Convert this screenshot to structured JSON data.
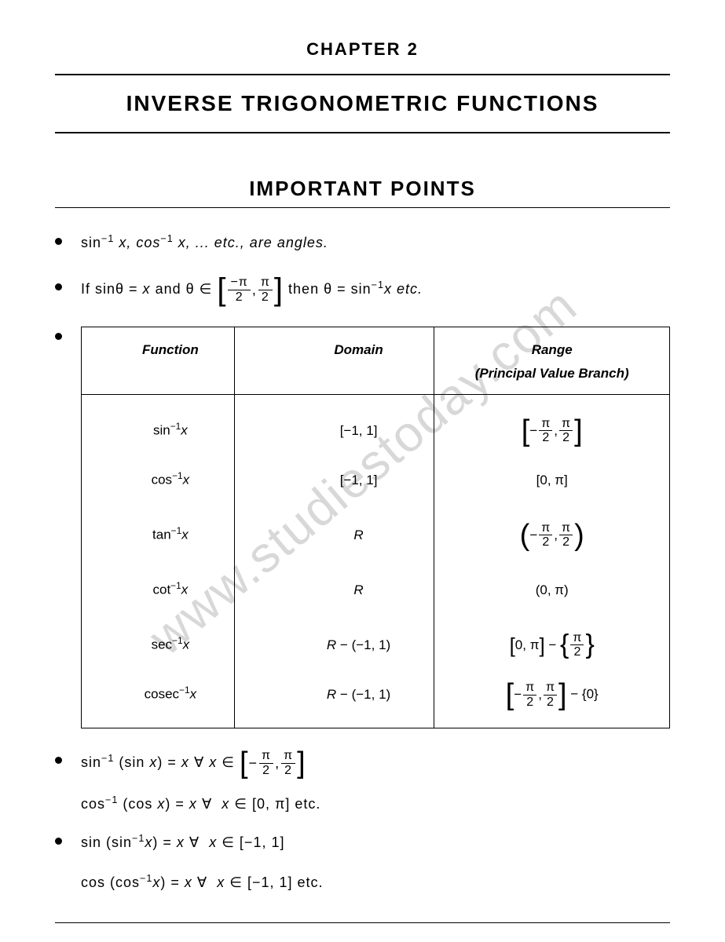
{
  "watermark": "www.studiestoday.com",
  "chapter_label": "CHAPTER 2",
  "chapter_title": "INVERSE TRIGONOMETRIC FUNCTIONS",
  "section_title": "IMPORTANT POINTS",
  "colors": {
    "text": "#000000",
    "background": "#ffffff",
    "watermark": "#d8d8d8",
    "rule": "#000000"
  },
  "typography": {
    "body_fontsize": 18,
    "chapter_label_fontsize": 22,
    "chapter_title_fontsize": 28,
    "section_title_fontsize": 26,
    "table_fontsize": 17
  },
  "bullets": {
    "b1_pre": "sin",
    "b1_sup": "−1",
    "b1_mid": " x, cos",
    "b1_post": " x, ... etc., are angles.",
    "b2_pre": "If sinθ = ",
    "b2_x": "x",
    "b2_and": " and ",
    "b2_theta_in": "θ ∈",
    "b2_frac1_num": "−π",
    "b2_frac1_den": "2",
    "b2_comma": ", ",
    "b2_frac2_num": "π",
    "b2_frac2_den": "2",
    "b2_then": " then θ = sin",
    "b2_post": "x etc.",
    "b4_pre": "sin",
    "b4_mid1": " (sin ",
    "b4_x": "x",
    "b4_eq": ") = ",
    "b4_forall": " ∀ ",
    "b4_in": " ∈",
    "b4_sub_pre": "cos",
    "b4_sub_mid": " (cos ",
    "b4_sub_range": " ∈ [0, π] etc.",
    "b5_pre": "sin (sin",
    "b5_post": " ∈ [−1, 1]",
    "b5_sub_pre": "cos (cos",
    "b5_sub_post": " ∈ [−1, 1] etc."
  },
  "table": {
    "headers": {
      "function": "Function",
      "domain": "Domain",
      "range_l1": "Range",
      "range_l2": "(Principal Value Branch)"
    },
    "rows": [
      {
        "func_base": "sin",
        "func_sup": "−1",
        "func_var": "x",
        "domain": "[−1, 1]",
        "range_type": "closed_frac",
        "num1": "π",
        "den1": "2",
        "neg1": true,
        "num2": "π",
        "den2": "2"
      },
      {
        "func_base": "cos",
        "func_sup": "−1",
        "func_var": "x",
        "domain": "[−1, 1]",
        "range_type": "plain",
        "range_text": "[0, π]"
      },
      {
        "func_base": "tan",
        "func_sup": "−1",
        "func_var": "x",
        "domain": "R",
        "range_type": "open_frac",
        "num1": "π",
        "den1": "2",
        "neg1": true,
        "num2": "π",
        "den2": "2"
      },
      {
        "func_base": "cot",
        "func_sup": "−1",
        "func_var": "x",
        "domain": "R",
        "range_type": "plain",
        "range_text": "(0, π)"
      },
      {
        "func_base": "sec",
        "func_sup": "−1",
        "func_var": "x",
        "domain": "R − (−1, 1)",
        "range_type": "sec",
        "main": "[0, π]",
        "minus_num": "π",
        "minus_den": "2"
      },
      {
        "func_base": "cosec",
        "func_sup": "−1",
        "func_var": "x",
        "domain": "R − (−1, 1)",
        "range_type": "cosec",
        "num1": "π",
        "den1": "2",
        "neg1": true,
        "num2": "π",
        "den2": "2",
        "minus_set": "{0}"
      }
    ]
  }
}
